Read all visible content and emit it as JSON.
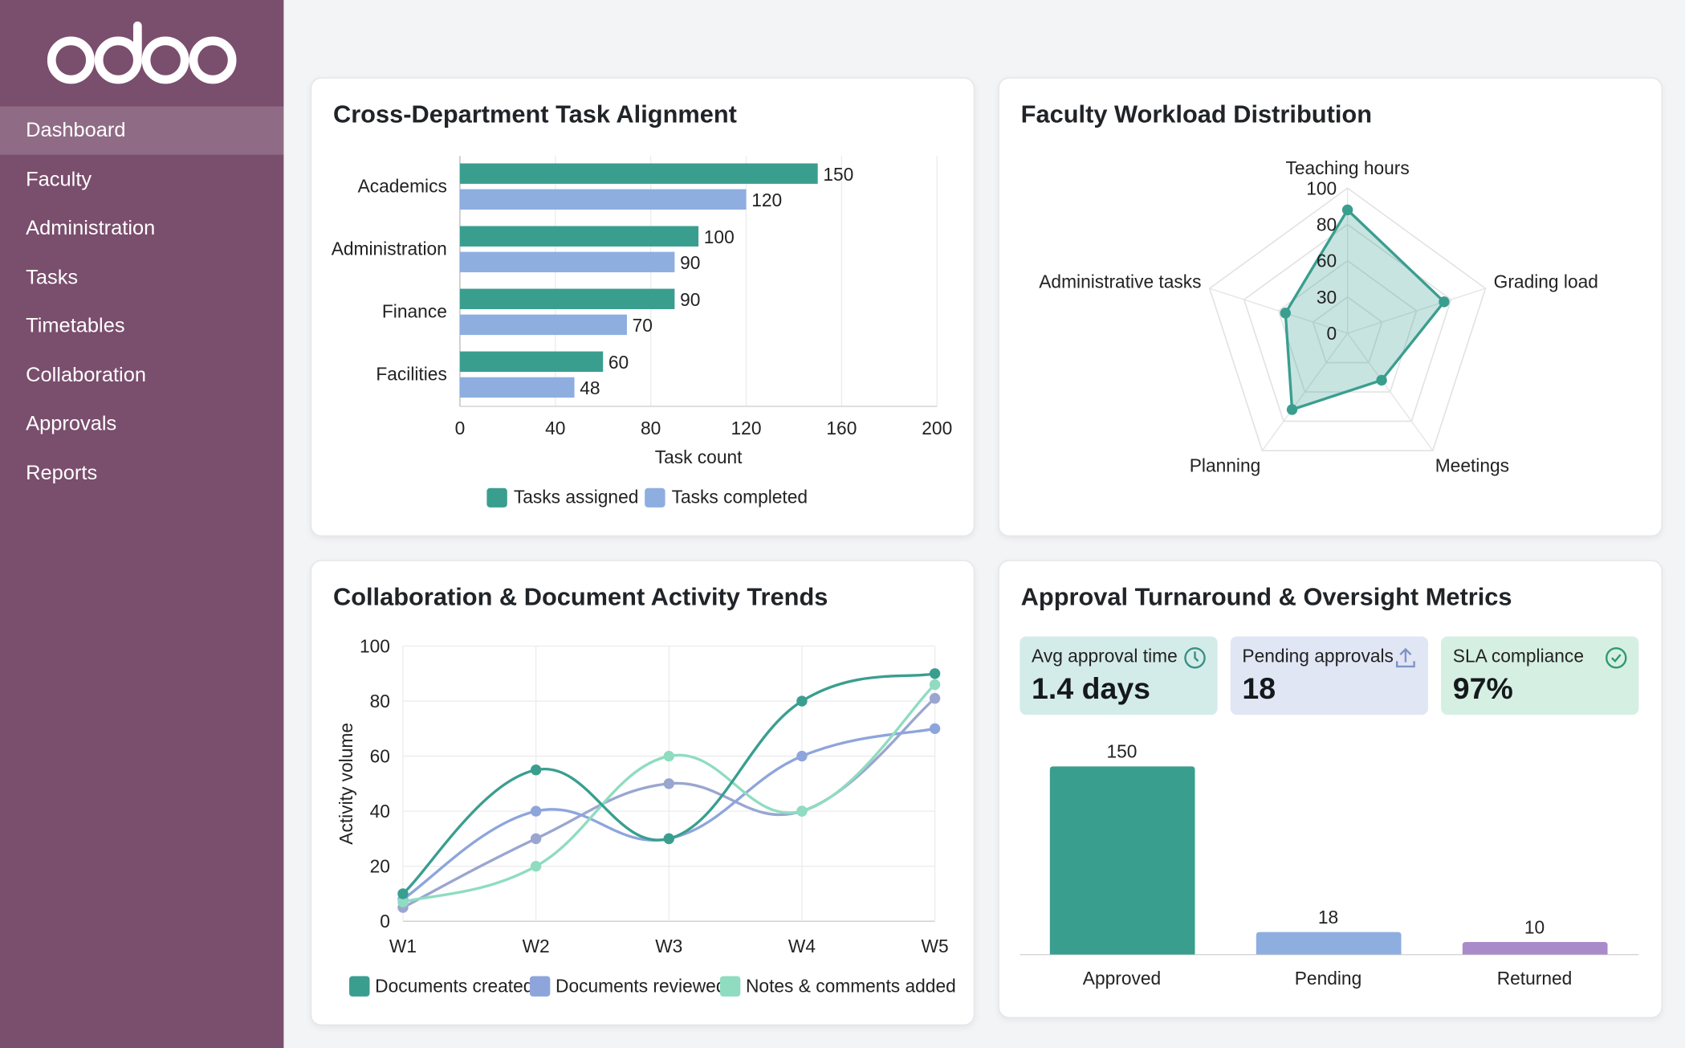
{
  "brand": {
    "logo_text": "odoo",
    "sidebar_color": "#7a4e6d"
  },
  "sidebar": {
    "items": [
      {
        "label": "Dashboard",
        "active": true
      },
      {
        "label": "Faculty"
      },
      {
        "label": "Administration"
      },
      {
        "label": "Tasks"
      },
      {
        "label": "Timetables"
      },
      {
        "label": "Collaboration"
      },
      {
        "label": "Approvals"
      },
      {
        "label": "Reports"
      }
    ]
  },
  "kpis": [
    {
      "label": "Avg approval time",
      "value": "1.4 days",
      "icon": "clock-icon",
      "bg": "#d4ece9",
      "icon_color": "#3a8f86"
    },
    {
      "label": "Pending approvals",
      "value": "18",
      "icon": "upload-icon",
      "bg": "#e1e6f5",
      "icon_color": "#7f93c6"
    },
    {
      "label": "SLA compliance",
      "value": "97%",
      "icon": "check-circle-icon",
      "bg": "#d6efe3",
      "icon_color": "#2f9a72"
    }
  ],
  "chart_data": [
    {
      "title": "Cross-Department Task Alignment",
      "type": "bar",
      "orientation": "horizontal",
      "categories": [
        "Academics",
        "Administration",
        "Finance",
        "Facilities"
      ],
      "series": [
        {
          "name": "Tasks assigned",
          "values": [
            150,
            100,
            90,
            60
          ],
          "color": "#3a9e8f"
        },
        {
          "name": "Tasks completed",
          "values": [
            120,
            90,
            70,
            48
          ],
          "color": "#8eaee0"
        }
      ],
      "xlabel": "Task count",
      "xlim": [
        0,
        200
      ],
      "xticks": [
        0,
        40,
        80,
        120,
        160,
        200
      ],
      "grid": true,
      "legend": "bottom"
    },
    {
      "title": "Faculty Workload Distribution",
      "type": "radar",
      "axes": [
        "Teaching hours",
        "Grading load",
        "Meetings",
        "Planning",
        "Administrative tasks"
      ],
      "values": [
        85,
        70,
        40,
        65,
        45
      ],
      "ticks": [
        "0",
        "30",
        "60",
        "80",
        "100"
      ],
      "color": "#3a9e8f"
    },
    {
      "title": "Collaboration & Document Activity Trends",
      "type": "line",
      "categories": [
        "W1",
        "W2",
        "W3",
        "W4",
        "W5"
      ],
      "series": [
        {
          "name": "Documents created",
          "values": [
            10,
            55,
            30,
            80,
            90
          ],
          "color": "#3a9e8f"
        },
        {
          "name": "Documents reviewed",
          "values": [
            8,
            40,
            30,
            60,
            70
          ],
          "color": "#8ea5dc"
        },
        {
          "name": "Notes & comments added",
          "values": [
            7,
            20,
            60,
            40,
            86
          ],
          "color": "#8fdcc0"
        },
        {
          "values": [
            5,
            30,
            50,
            40,
            81
          ],
          "color": "#9aa6d0"
        }
      ],
      "ylabel": "Activity volume",
      "ylim": [
        0,
        100
      ],
      "yticks": [
        0,
        20,
        40,
        60,
        80,
        100
      ],
      "grid": true,
      "legend": "bottom"
    },
    {
      "title": "Approval Turnaround & Oversight Metrics",
      "type": "bar",
      "categories": [
        "Approved",
        "Pending",
        "Returned"
      ],
      "values": [
        150,
        18,
        10
      ],
      "colors": [
        "#3a9e8f",
        "#8eaee0",
        "#a98bc9"
      ],
      "ylim": [
        0,
        150
      ]
    }
  ]
}
